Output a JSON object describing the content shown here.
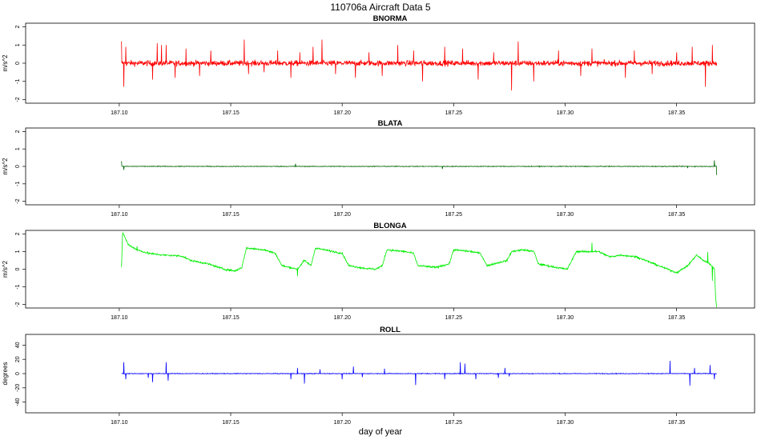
{
  "figure": {
    "title": "110706a   Aircraft Data 5",
    "xlabel": "day of year"
  },
  "chart_data": [
    {
      "type": "line",
      "title": "BNORMA",
      "ylabel": "m/s^2",
      "color": "#ff0000",
      "xlim": [
        187.058,
        187.385
      ],
      "ylim": [
        -2.2,
        2.2
      ],
      "xticks": [
        "187.10",
        "187.15",
        "187.20",
        "187.25",
        "187.30",
        "187.35"
      ],
      "yticks": [
        "-2",
        "-1",
        "0",
        "1",
        "2"
      ],
      "x_range": [
        187.101,
        187.368
      ],
      "level": [
        [
          187.101,
          0.0
        ],
        [
          187.368,
          0.0
        ]
      ],
      "noise": 0.15,
      "spikes": [
        [
          187.101,
          1.2
        ],
        [
          187.102,
          -1.3
        ],
        [
          187.103,
          0.9
        ],
        [
          187.115,
          -0.9
        ],
        [
          187.117,
          1.1
        ],
        [
          187.119,
          1.0
        ],
        [
          187.121,
          1.0
        ],
        [
          187.125,
          -0.8
        ],
        [
          187.13,
          0.8
        ],
        [
          187.136,
          -0.7
        ],
        [
          187.141,
          0.7
        ],
        [
          187.156,
          1.3
        ],
        [
          187.158,
          -0.6
        ],
        [
          187.165,
          -0.5
        ],
        [
          187.171,
          0.7
        ],
        [
          187.177,
          -0.8
        ],
        [
          187.181,
          0.6
        ],
        [
          187.187,
          0.9
        ],
        [
          187.191,
          1.3
        ],
        [
          187.197,
          -0.6
        ],
        [
          187.206,
          -0.8
        ],
        [
          187.212,
          0.6
        ],
        [
          187.218,
          -0.7
        ],
        [
          187.225,
          1.0
        ],
        [
          187.232,
          0.7
        ],
        [
          187.236,
          -1.0
        ],
        [
          187.246,
          0.9
        ],
        [
          187.254,
          0.8
        ],
        [
          187.261,
          -0.9
        ],
        [
          187.268,
          0.6
        ],
        [
          187.276,
          -1.5
        ],
        [
          187.279,
          1.2
        ],
        [
          187.286,
          -1.0
        ],
        [
          187.297,
          0.7
        ],
        [
          187.307,
          -0.7
        ],
        [
          187.312,
          0.8
        ],
        [
          187.327,
          -0.8
        ],
        [
          187.331,
          0.7
        ],
        [
          187.339,
          -0.6
        ],
        [
          187.35,
          0.6
        ],
        [
          187.357,
          0.9
        ],
        [
          187.363,
          -1.3
        ],
        [
          187.366,
          1.0
        ]
      ]
    },
    {
      "type": "line",
      "title": "BLATA",
      "ylabel": "m/s^2",
      "color": "#006400",
      "xlim": [
        187.058,
        187.385
      ],
      "ylim": [
        -2.2,
        2.2
      ],
      "xticks": [
        "187.10",
        "187.15",
        "187.20",
        "187.25",
        "187.30",
        "187.35"
      ],
      "yticks": [
        "-2",
        "-1",
        "0",
        "1",
        "2"
      ],
      "x_range": [
        187.101,
        187.368
      ],
      "level": [
        [
          187.101,
          0.0
        ],
        [
          187.368,
          0.0
        ]
      ],
      "noise": 0.02,
      "spikes": [
        [
          187.101,
          0.3
        ],
        [
          187.102,
          -0.2
        ],
        [
          187.179,
          0.15
        ],
        [
          187.245,
          -0.15
        ],
        [
          187.355,
          -0.1
        ],
        [
          187.367,
          0.35
        ],
        [
          187.368,
          -0.5
        ]
      ]
    },
    {
      "type": "line",
      "title": "BLONGA",
      "ylabel": "m/s^2",
      "color": "#00ee00",
      "xlim": [
        187.058,
        187.385
      ],
      "ylim": [
        -2.2,
        2.2
      ],
      "xticks": [
        "187.10",
        "187.15",
        "187.20",
        "187.25",
        "187.30",
        "187.35"
      ],
      "yticks": [
        "-2",
        "-1",
        "0",
        "1",
        "2"
      ],
      "x_range": [
        187.101,
        187.368
      ],
      "level": [
        [
          187.101,
          0.1
        ],
        [
          187.1015,
          2.1
        ],
        [
          187.104,
          1.4
        ],
        [
          187.108,
          1.1
        ],
        [
          187.113,
          0.9
        ],
        [
          187.12,
          0.8
        ],
        [
          187.128,
          0.75
        ],
        [
          187.132,
          0.5
        ],
        [
          187.14,
          0.3
        ],
        [
          187.147,
          0.0
        ],
        [
          187.152,
          -0.1
        ],
        [
          187.155,
          0.1
        ],
        [
          187.157,
          1.2
        ],
        [
          187.165,
          1.1
        ],
        [
          187.17,
          0.9
        ],
        [
          187.173,
          0.2
        ],
        [
          187.18,
          0.0
        ],
        [
          187.183,
          0.5
        ],
        [
          187.186,
          0.2
        ],
        [
          187.188,
          1.2
        ],
        [
          187.196,
          1.0
        ],
        [
          187.2,
          0.9
        ],
        [
          187.203,
          0.2
        ],
        [
          187.21,
          0.05
        ],
        [
          187.215,
          0.0
        ],
        [
          187.218,
          0.2
        ],
        [
          187.22,
          1.1
        ],
        [
          187.228,
          1.0
        ],
        [
          187.232,
          0.9
        ],
        [
          187.234,
          0.2
        ],
        [
          187.242,
          0.1
        ],
        [
          187.248,
          0.3
        ],
        [
          187.25,
          1.1
        ],
        [
          187.258,
          1.0
        ],
        [
          187.262,
          0.9
        ],
        [
          187.265,
          0.2
        ],
        [
          187.271,
          0.4
        ],
        [
          187.274,
          0.5
        ],
        [
          187.276,
          1.0
        ],
        [
          187.281,
          1.1
        ],
        [
          187.286,
          1.0
        ],
        [
          187.288,
          0.3
        ],
        [
          187.296,
          0.1
        ],
        [
          187.301,
          0.0
        ],
        [
          187.303,
          0.5
        ],
        [
          187.305,
          1.0
        ],
        [
          187.315,
          1.0
        ],
        [
          187.32,
          0.7
        ],
        [
          187.325,
          0.8
        ],
        [
          187.332,
          0.7
        ],
        [
          187.338,
          0.4
        ],
        [
          187.344,
          0.1
        ],
        [
          187.35,
          -0.2
        ],
        [
          187.355,
          0.2
        ],
        [
          187.359,
          0.8
        ],
        [
          187.362,
          0.5
        ],
        [
          187.365,
          0.3
        ],
        [
          187.367,
          0.0
        ],
        [
          187.3675,
          -1.5
        ],
        [
          187.368,
          -2.2
        ]
      ],
      "noise": 0.05,
      "spikes": [
        [
          187.108,
          0.2
        ],
        [
          187.18,
          -0.4
        ],
        [
          187.312,
          0.5
        ],
        [
          187.364,
          0.6
        ],
        [
          187.366,
          -0.8
        ]
      ]
    },
    {
      "type": "line",
      "title": "ROLL",
      "ylabel": "degrees",
      "color": "#0000ff",
      "xlim": [
        187.058,
        187.385
      ],
      "ylim": [
        -55,
        55
      ],
      "xticks": [
        "187.10",
        "187.15",
        "187.20",
        "187.25",
        "187.30",
        "187.35"
      ],
      "yticks": [
        "-40",
        "-20",
        "0",
        "20",
        "40"
      ],
      "x_range": [
        187.101,
        187.368
      ],
      "level": [
        [
          187.101,
          0.0
        ],
        [
          187.368,
          0.0
        ]
      ],
      "noise": 0.5,
      "spikes": [
        [
          187.102,
          16
        ],
        [
          187.103,
          -8
        ],
        [
          187.113,
          -6
        ],
        [
          187.115,
          -12
        ],
        [
          187.121,
          16
        ],
        [
          187.122,
          -10
        ],
        [
          187.177,
          -8
        ],
        [
          187.18,
          8
        ],
        [
          187.183,
          -14
        ],
        [
          187.19,
          6
        ],
        [
          187.2,
          -8
        ],
        [
          187.205,
          10
        ],
        [
          187.209,
          -5
        ],
        [
          187.219,
          7
        ],
        [
          187.233,
          -16
        ],
        [
          187.246,
          -8
        ],
        [
          187.253,
          16
        ],
        [
          187.255,
          14
        ],
        [
          187.26,
          -8
        ],
        [
          187.27,
          -6
        ],
        [
          187.273,
          8
        ],
        [
          187.275,
          -4
        ],
        [
          187.347,
          18
        ],
        [
          187.356,
          -17
        ],
        [
          187.358,
          8
        ],
        [
          187.365,
          12
        ],
        [
          187.367,
          -8
        ]
      ]
    }
  ]
}
